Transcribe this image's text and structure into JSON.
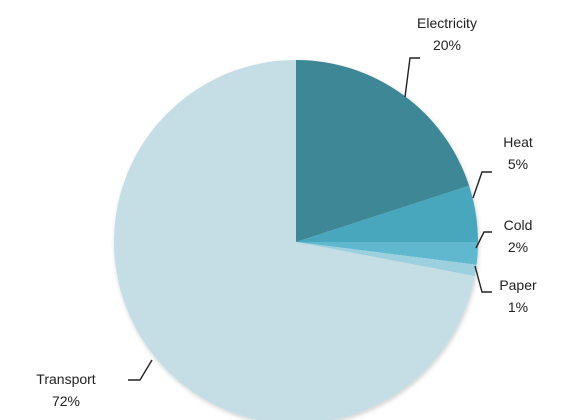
{
  "chart_data": {
    "type": "pie",
    "title": "",
    "slices": [
      {
        "name": "Electricity",
        "value": 20,
        "label": "20%",
        "color": "#3d8797"
      },
      {
        "name": "Heat",
        "value": 5,
        "label": "5%",
        "color": "#4aa7bd"
      },
      {
        "name": "Cold",
        "value": 2,
        "label": "2%",
        "color": "#5fb8cd"
      },
      {
        "name": "Paper",
        "value": 1,
        "label": "1%",
        "color": "#9cd0de"
      },
      {
        "name": "Transport",
        "value": 72,
        "label": "72%",
        "color": "#c5dde5"
      }
    ],
    "start": "12 o'clock",
    "direction": "clockwise",
    "legend": "none, labels placed outside slices with leader lines"
  }
}
